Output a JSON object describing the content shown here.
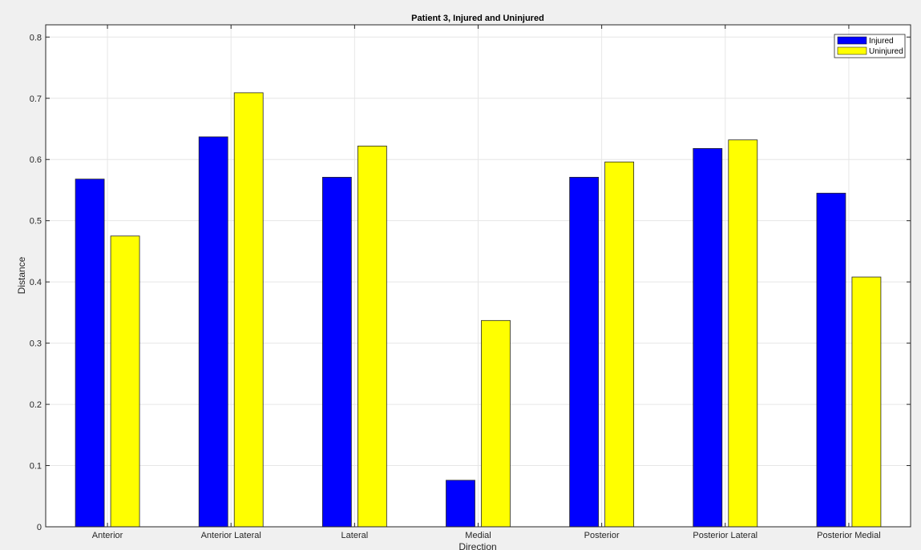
{
  "chart_data": {
    "type": "bar",
    "title": "Patient 3, Injured and Uninjured",
    "xlabel": "Direction",
    "ylabel": "Distance",
    "ylim": [
      0,
      0.82
    ],
    "yticks": [
      "0",
      "0.1",
      "0.2",
      "0.3",
      "0.4",
      "0.5",
      "0.6",
      "0.7",
      "0.8"
    ],
    "grid": true,
    "legend_position": "top-right",
    "categories": [
      "Anterior",
      "Anterior Lateral",
      "Lateral",
      "Medial",
      "Posterior",
      "Posterior Lateral",
      "Posterior Medial"
    ],
    "series": [
      {
        "name": "Injured",
        "color": "#0000ff",
        "values": [
          0.568,
          0.637,
          0.571,
          0.076,
          0.571,
          0.618,
          0.545
        ]
      },
      {
        "name": "Uninjured",
        "color": "#ffff00",
        "values": [
          0.475,
          0.709,
          0.622,
          0.337,
          0.596,
          0.632,
          0.408
        ]
      }
    ]
  }
}
